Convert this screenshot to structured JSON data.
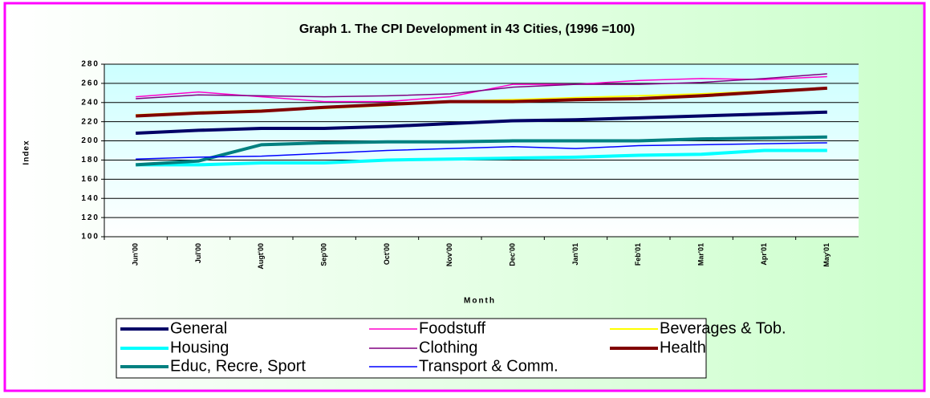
{
  "chart_data": {
    "type": "line",
    "title": "Graph 1. The CPI Development in 43 Cities, (1996 =100)",
    "x_label": "Month",
    "y_label": "Index",
    "categories": [
      "Jun'00",
      "Jul'00",
      "Augt'00",
      "Sep'00",
      "Oct'00",
      "Nov'00",
      "Dec'00",
      "Jan'01",
      "Feb'01",
      "Mar'01",
      "Apr'01",
      "May'01"
    ],
    "ylim": [
      100,
      280
    ],
    "yticks": [
      100,
      120,
      140,
      160,
      180,
      200,
      220,
      240,
      260,
      280
    ],
    "grid": true,
    "legend": "bottom",
    "series": [
      {
        "name": "General",
        "color": "#000066",
        "width": 4,
        "values": [
          208,
          211,
          213,
          213,
          215,
          218,
          221,
          222,
          224,
          226,
          228,
          230
        ]
      },
      {
        "name": "Foodstuff",
        "color": "#ff00cc",
        "width": 1.5,
        "values": [
          246,
          251,
          246,
          241,
          241,
          246,
          259,
          259,
          263,
          265,
          264,
          267
        ]
      },
      {
        "name": "Beverages & Tob.",
        "color": "#ffff00",
        "width": 2,
        "values": [
          227,
          230,
          232,
          234,
          237,
          241,
          243,
          245,
          247,
          249,
          252,
          255
        ]
      },
      {
        "name": "Housing",
        "color": "#00ffff",
        "width": 4,
        "values": [
          175,
          175,
          177,
          177,
          180,
          181,
          182,
          183,
          185,
          186,
          190,
          190
        ]
      },
      {
        "name": "Clothing",
        "color": "#800080",
        "width": 1.5,
        "values": [
          244,
          248,
          247,
          246,
          247,
          249,
          256,
          259,
          259,
          261,
          265,
          270
        ]
      },
      {
        "name": "Health",
        "color": "#800000",
        "width": 4,
        "values": [
          226,
          229,
          231,
          235,
          238,
          241,
          241,
          243,
          244,
          247,
          251,
          255
        ]
      },
      {
        "name": "Educ, Recre, Sport",
        "color": "#008080",
        "width": 4,
        "values": [
          175,
          179,
          196,
          198,
          199,
          199,
          200,
          200,
          200,
          202,
          203,
          204
        ]
      },
      {
        "name": "Transport & Comm.",
        "color": "#0000ff",
        "width": 1.5,
        "values": [
          181,
          183,
          184,
          187,
          190,
          192,
          194,
          192,
          195,
          196,
          197,
          198
        ]
      }
    ]
  }
}
